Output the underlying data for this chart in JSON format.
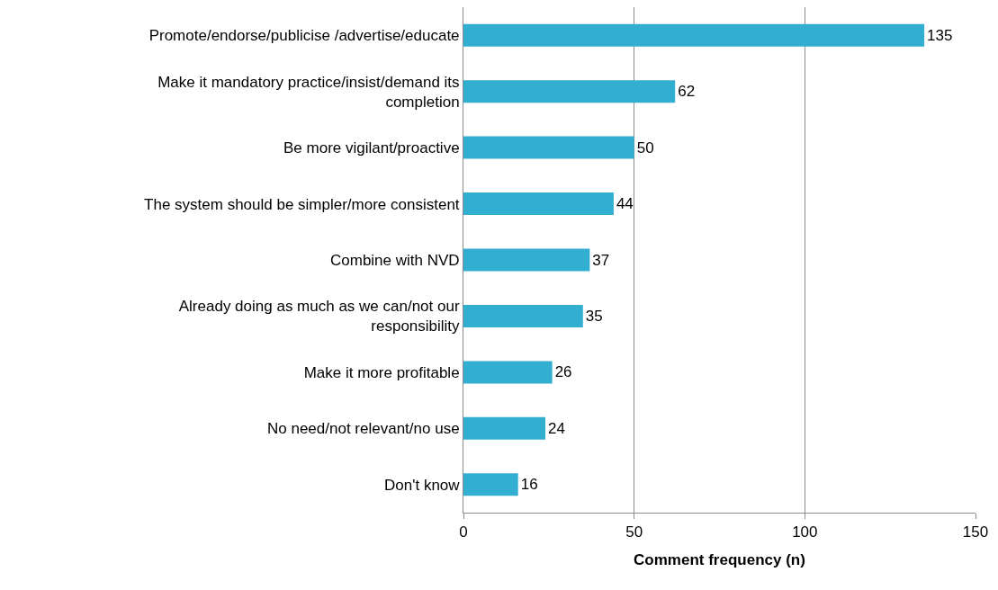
{
  "chart_data": {
    "type": "bar",
    "orientation": "horizontal",
    "xlabel": "Comment frequency (n)",
    "categories": [
      "Promote/endorse/publicise /advertise/educate",
      "Make it mandatory practice/insist/demand its completion",
      "Be more vigilant/proactive",
      "The system should be simpler/more consistent",
      "Combine with NVD",
      "Already doing as much as we can/not our responsibility",
      "Make it more profitable",
      "No need/not relevant/no use",
      "Don't know"
    ],
    "values": [
      135,
      62,
      50,
      44,
      37,
      35,
      26,
      24,
      16
    ],
    "color": "#31aed0",
    "xlim": [
      0,
      150
    ],
    "xticks": [
      0,
      50,
      100,
      150
    ],
    "grid": "x",
    "data_labels": true,
    "legend": false
  }
}
